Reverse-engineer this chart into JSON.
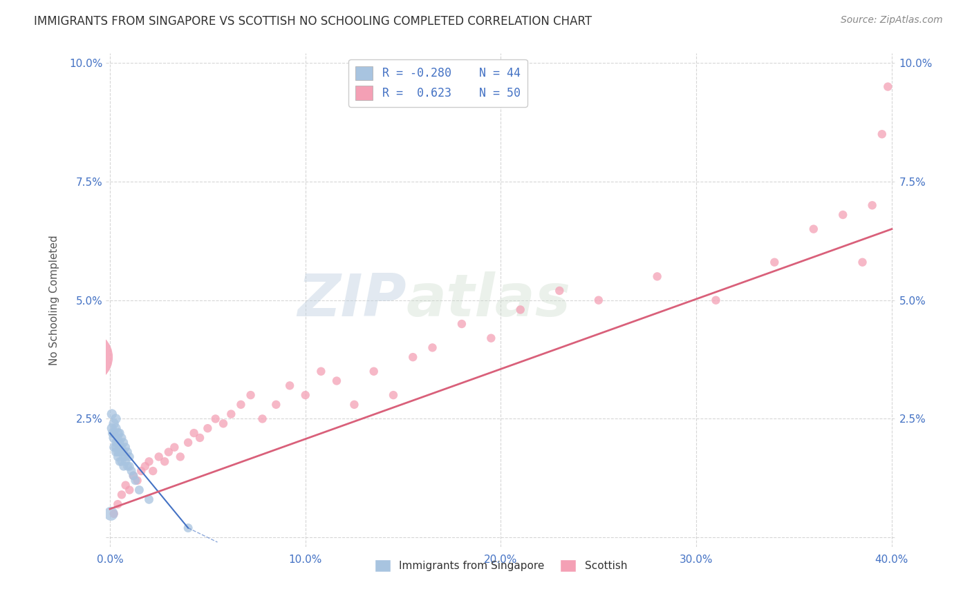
{
  "title": "IMMIGRANTS FROM SINGAPORE VS SCOTTISH NO SCHOOLING COMPLETED CORRELATION CHART",
  "source": "Source: ZipAtlas.com",
  "ylabel": "No Schooling Completed",
  "xlim": [
    -0.002,
    0.402
  ],
  "ylim": [
    -0.002,
    0.102
  ],
  "xticks": [
    0.0,
    0.1,
    0.2,
    0.3,
    0.4
  ],
  "yticks": [
    0.0,
    0.025,
    0.05,
    0.075,
    0.1
  ],
  "xtick_labels": [
    "0.0%",
    "10.0%",
    "20.0%",
    "30.0%",
    "40.0%"
  ],
  "ytick_labels": [
    "",
    "2.5%",
    "5.0%",
    "7.5%",
    "10.0%"
  ],
  "legend_r1": "R = -0.280",
  "legend_n1": "N = 44",
  "legend_r2": "R =  0.623",
  "legend_n2": "N = 50",
  "color_blue": "#a8c4e0",
  "color_pink": "#f4a0b5",
  "line_color_blue": "#4472c4",
  "line_color_pink": "#d9607a",
  "axis_label_color": "#4472c4",
  "watermark": "ZIPatlas",
  "singapore_x": [
    0.0005,
    0.001,
    0.001,
    0.0015,
    0.002,
    0.002,
    0.002,
    0.002,
    0.003,
    0.003,
    0.003,
    0.003,
    0.003,
    0.004,
    0.004,
    0.004,
    0.004,
    0.004,
    0.005,
    0.005,
    0.005,
    0.005,
    0.005,
    0.006,
    0.006,
    0.006,
    0.006,
    0.007,
    0.007,
    0.007,
    0.007,
    0.008,
    0.008,
    0.008,
    0.009,
    0.009,
    0.01,
    0.01,
    0.011,
    0.012,
    0.013,
    0.015,
    0.02,
    0.04
  ],
  "singapore_y": [
    0.005,
    0.023,
    0.026,
    0.022,
    0.021,
    0.024,
    0.022,
    0.019,
    0.025,
    0.023,
    0.02,
    0.019,
    0.018,
    0.022,
    0.021,
    0.02,
    0.018,
    0.017,
    0.022,
    0.02,
    0.019,
    0.018,
    0.016,
    0.021,
    0.019,
    0.018,
    0.016,
    0.02,
    0.018,
    0.017,
    0.015,
    0.019,
    0.017,
    0.016,
    0.018,
    0.015,
    0.017,
    0.015,
    0.014,
    0.013,
    0.012,
    0.01,
    0.008,
    0.002
  ],
  "singapore_sizes": [
    200,
    100,
    100,
    100,
    100,
    100,
    80,
    80,
    100,
    100,
    80,
    80,
    80,
    100,
    80,
    80,
    80,
    80,
    80,
    80,
    80,
    80,
    80,
    80,
    80,
    80,
    80,
    80,
    80,
    80,
    80,
    80,
    80,
    80,
    80,
    80,
    80,
    80,
    80,
    80,
    80,
    80,
    80,
    80
  ],
  "singapore_large_x": [
    0.0
  ],
  "singapore_large_y": [
    0.038
  ],
  "scottish_x": [
    0.002,
    0.004,
    0.006,
    0.008,
    0.01,
    0.012,
    0.014,
    0.016,
    0.018,
    0.02,
    0.022,
    0.025,
    0.028,
    0.03,
    0.033,
    0.036,
    0.04,
    0.043,
    0.046,
    0.05,
    0.054,
    0.058,
    0.062,
    0.067,
    0.072,
    0.078,
    0.085,
    0.092,
    0.1,
    0.108,
    0.116,
    0.125,
    0.135,
    0.145,
    0.155,
    0.165,
    0.18,
    0.195,
    0.21,
    0.23,
    0.25,
    0.28,
    0.31,
    0.34,
    0.36,
    0.375,
    0.385,
    0.39,
    0.395,
    0.398
  ],
  "scottish_y": [
    0.005,
    0.007,
    0.009,
    0.011,
    0.01,
    0.013,
    0.012,
    0.014,
    0.015,
    0.016,
    0.014,
    0.017,
    0.016,
    0.018,
    0.019,
    0.017,
    0.02,
    0.022,
    0.021,
    0.023,
    0.025,
    0.024,
    0.026,
    0.028,
    0.03,
    0.025,
    0.028,
    0.032,
    0.03,
    0.035,
    0.033,
    0.028,
    0.035,
    0.03,
    0.038,
    0.04,
    0.045,
    0.042,
    0.048,
    0.052,
    0.05,
    0.055,
    0.05,
    0.058,
    0.065,
    0.068,
    0.058,
    0.07,
    0.085,
    0.095
  ],
  "scottish_sizes": [
    80,
    80,
    80,
    80,
    80,
    80,
    80,
    80,
    80,
    80,
    80,
    80,
    80,
    80,
    80,
    80,
    80,
    80,
    80,
    80,
    80,
    80,
    80,
    80,
    80,
    80,
    80,
    80,
    80,
    80,
    80,
    80,
    80,
    80,
    80,
    80,
    80,
    80,
    80,
    80,
    80,
    80,
    80,
    80,
    80,
    80,
    80,
    80,
    80,
    80
  ],
  "pink_large_x": [
    0.0
  ],
  "pink_large_y": [
    0.038
  ],
  "sg_line_x": [
    0.0,
    0.04
  ],
  "sg_line_y": [
    0.022,
    0.002
  ],
  "sc_line_x": [
    0.0,
    0.4
  ],
  "sc_line_y": [
    0.006,
    0.065
  ]
}
